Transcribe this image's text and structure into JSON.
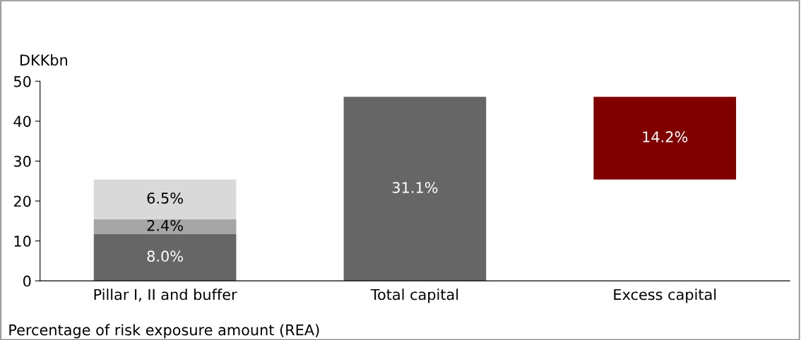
{
  "chart_data": {
    "type": "bar",
    "stacked": true,
    "ylabel": "DKKbn",
    "categories": [
      "Pillar I, II and buffer",
      "Total capital",
      "Excess capital"
    ],
    "series": [
      {
        "color": "#666666",
        "values": [
          11.7,
          46.1,
          null
        ]
      },
      {
        "color": "#a6a6a6",
        "values": [
          3.7,
          null,
          null
        ]
      },
      {
        "color": "#d9d9d9",
        "values": [
          10.0,
          null,
          null
        ]
      },
      {
        "color": "#800000",
        "values": [
          null,
          null,
          20.7
        ],
        "base": [
          null,
          null,
          25.4
        ]
      }
    ],
    "ylim": [
      0,
      50
    ],
    "yticks": [
      0,
      10,
      20,
      30,
      40,
      50
    ],
    "grid": false,
    "legend": false,
    "annotations": [
      "8.0%",
      "31.1%",
      "2.4%",
      "6.5%",
      "14.2%",
      "Percentage of risk exposure amount (REA)"
    ]
  }
}
